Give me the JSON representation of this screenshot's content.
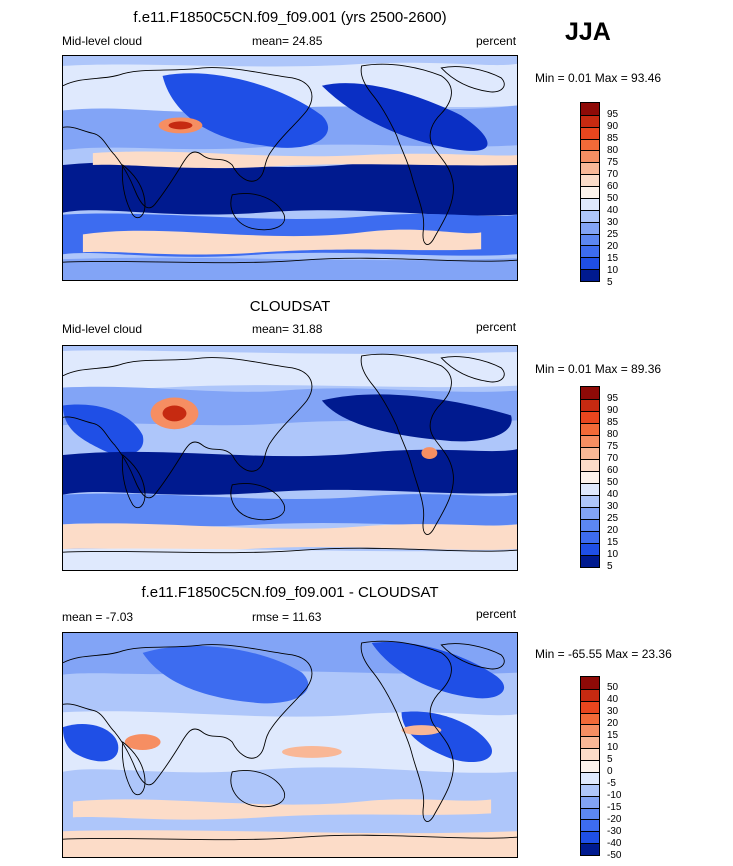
{
  "season": "JJA",
  "colors": {
    "lev5": "#001a8f",
    "lev10": "#0a2fc4",
    "lev15": "#1f4fe6",
    "lev20": "#3d6cf0",
    "lev25": "#5c87f3",
    "lev30": "#82a4f6",
    "lev40": "#aec6fa",
    "lev50": "#dfe9fd",
    "lev60": "#fcdcc8",
    "lev70": "#f9b796",
    "lev75": "#f68e62",
    "lev80": "#f26a38",
    "lev85": "#e8461e",
    "lev90": "#c62a11",
    "lev95": "#8e0a07",
    "coast": "#000000"
  },
  "panels": [
    {
      "title": "f.e11.F1850C5CN.f09_f09.001 (yrs 2500-2600)",
      "left_label": "Mid-level cloud",
      "center_label": "mean=  24.85",
      "right_label": "percent",
      "minmax": "Min =   0.01 Max =  93.46",
      "colorbar_labels": [
        "95",
        "90",
        "85",
        "80",
        "75",
        "70",
        "60",
        "50",
        "40",
        "30",
        "25",
        "20",
        "15",
        "10",
        "5"
      ]
    },
    {
      "title": "CLOUDSAT",
      "left_label": "Mid-level cloud",
      "center_label": "mean=  31.88",
      "right_label": "percent",
      "minmax": "Min =   0.01 Max =  89.36",
      "colorbar_labels": [
        "95",
        "90",
        "85",
        "80",
        "75",
        "70",
        "60",
        "50",
        "40",
        "30",
        "25",
        "20",
        "15",
        "10",
        "5"
      ]
    },
    {
      "title": "f.e11.F1850C5CN.f09_f09.001 - CLOUDSAT",
      "left_label": "mean =  -7.03",
      "center_label": "rmse =  11.63",
      "right_label": "percent",
      "minmax": "Min = -65.55 Max =  23.36",
      "colorbar_labels": [
        "50",
        "40",
        "30",
        "20",
        "15",
        "10",
        "5",
        "0",
        "-5",
        "-10",
        "-15",
        "-20",
        "-30",
        "-40",
        "-50"
      ]
    }
  ]
}
